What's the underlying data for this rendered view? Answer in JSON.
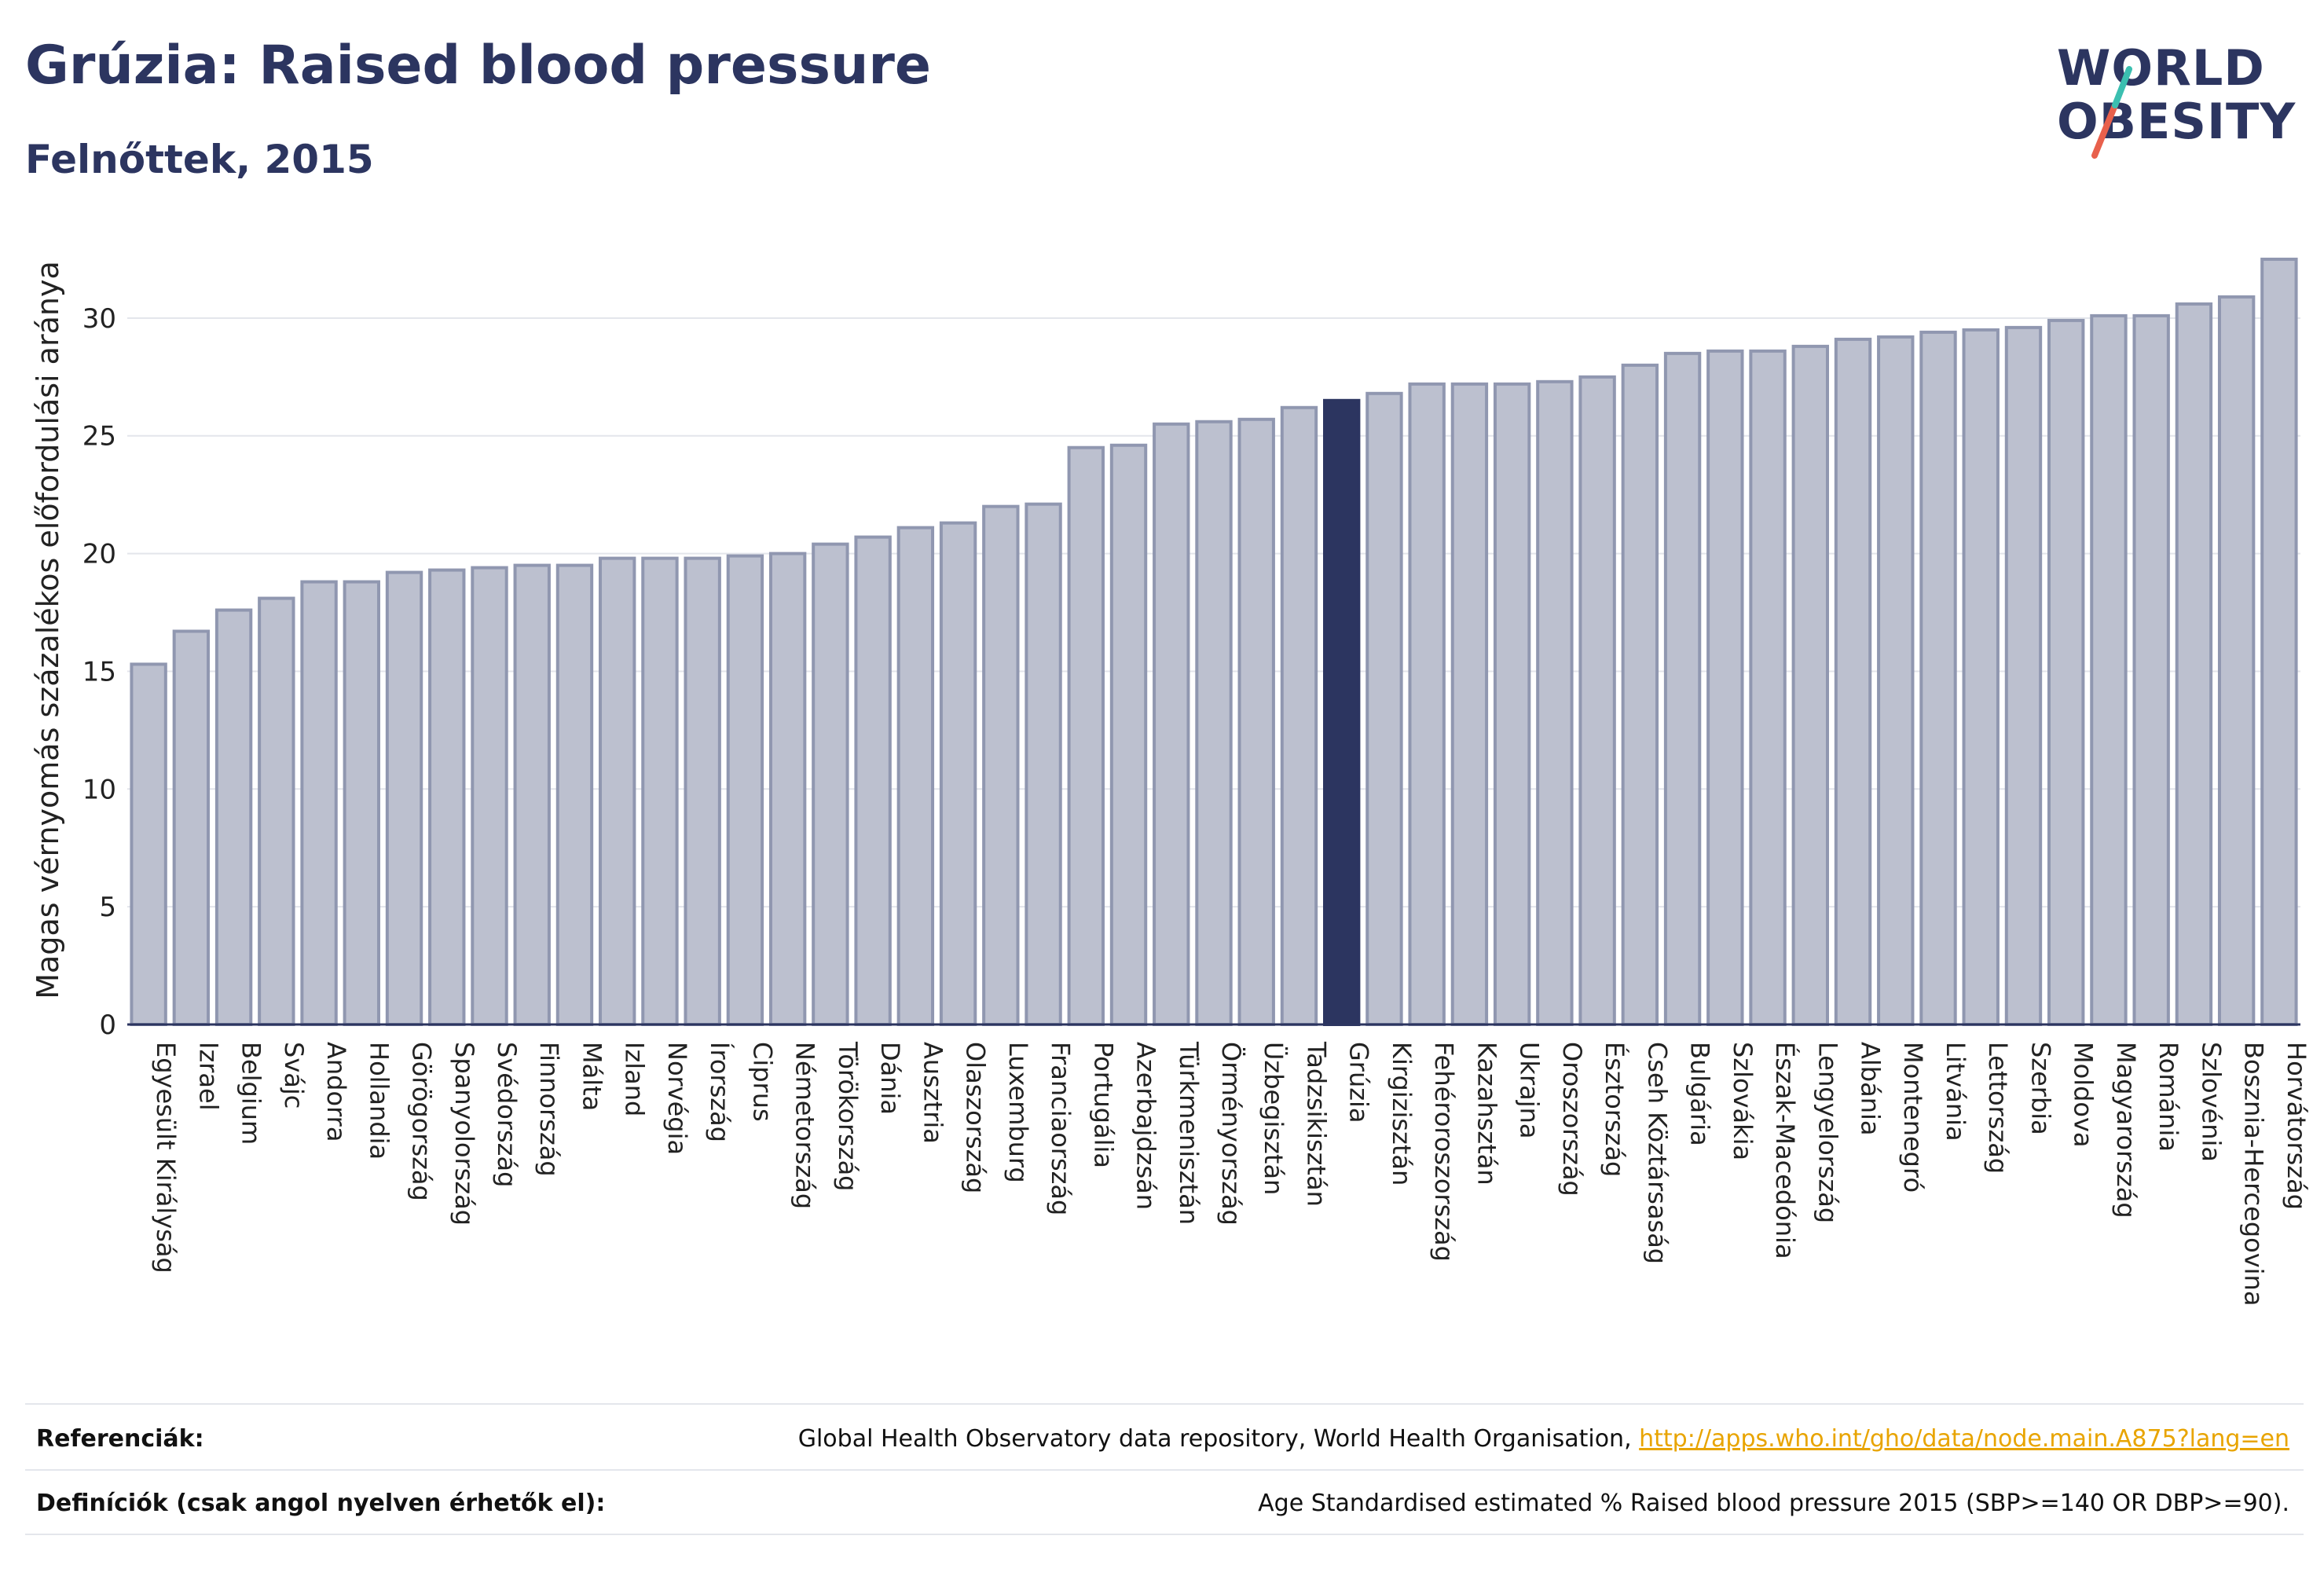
{
  "header": {
    "title": "Grúzia: Raised blood pressure",
    "subtitle": "Felnőttek, 2015"
  },
  "logo": {
    "line1": "WORLD",
    "line2": "OBESITY",
    "slash_colors": [
      "#e8604c",
      "#3bbfb0"
    ]
  },
  "colors": {
    "bar": "#bcc0cf",
    "bar_border": "#9097b0",
    "highlight": "#2c3560",
    "grid": "#e3e5eb",
    "text": "#222222"
  },
  "chart_data": {
    "type": "bar",
    "ylabel": "Magas vérnyomás százalékos előfordulási aránya",
    "xlabel": "",
    "ylim": [
      0,
      33.5
    ],
    "yticks": [
      0,
      5,
      10,
      15,
      20,
      25,
      30
    ],
    "grid": true,
    "highlight": "Grúzia",
    "categories": [
      "Egyesült Királyság",
      "Izrael",
      "Belgium",
      "Svájc",
      "Andorra",
      "Hollandia",
      "Görögország",
      "Spanyolország",
      "Svédország",
      "Finnország",
      "Málta",
      "Izland",
      "Norvégia",
      "Írország",
      "Ciprus",
      "Németország",
      "Törökország",
      "Dánia",
      "Ausztria",
      "Olaszország",
      "Luxemburg",
      "Franciaország",
      "Portugália",
      "Azerbajdzsán",
      "Türkmenisztán",
      "Örményország",
      "Üzbegisztán",
      "Tadzsikisztán",
      "Grúzia",
      "Kirgizisztán",
      "Fehéroroszország",
      "Kazahsztán",
      "Ukrajna",
      "Oroszország",
      "Észtország",
      "Cseh Köztársaság",
      "Bulgária",
      "Szlovákia",
      "Észak-Macedónia",
      "Lengyelország",
      "Albánia",
      "Montenegró",
      "Litvánia",
      "Lettország",
      "Szerbia",
      "Moldova",
      "Magyarország",
      "Románia",
      "Szlovénia",
      "Bosznia-Hercegovina",
      "Horvátország"
    ],
    "values": [
      15.3,
      16.7,
      17.6,
      18.1,
      18.8,
      18.8,
      19.2,
      19.3,
      19.4,
      19.5,
      19.5,
      19.8,
      19.8,
      19.8,
      19.9,
      20.0,
      20.4,
      20.7,
      21.1,
      21.3,
      22.0,
      22.1,
      24.5,
      24.6,
      25.5,
      25.6,
      25.7,
      26.2,
      26.5,
      26.8,
      27.2,
      27.2,
      27.2,
      27.3,
      27.5,
      28.0,
      28.5,
      28.6,
      28.6,
      28.8,
      29.1,
      29.2,
      29.4,
      29.5,
      29.6,
      29.9,
      30.1,
      30.1,
      30.6,
      30.9,
      32.5
    ]
  },
  "footer": {
    "references_label": "Referenciák:",
    "references_text": "Global Health Observatory data repository, World Health Organisation, ",
    "references_link": "http://apps.who.int/gho/data/node.main.A875?lang=en",
    "definitions_label": "Definíciók (csak angol nyelven érhetők el):",
    "definitions_text": "Age Standardised estimated % Raised blood pressure 2015 (SBP>=140 OR DBP>=90)."
  }
}
